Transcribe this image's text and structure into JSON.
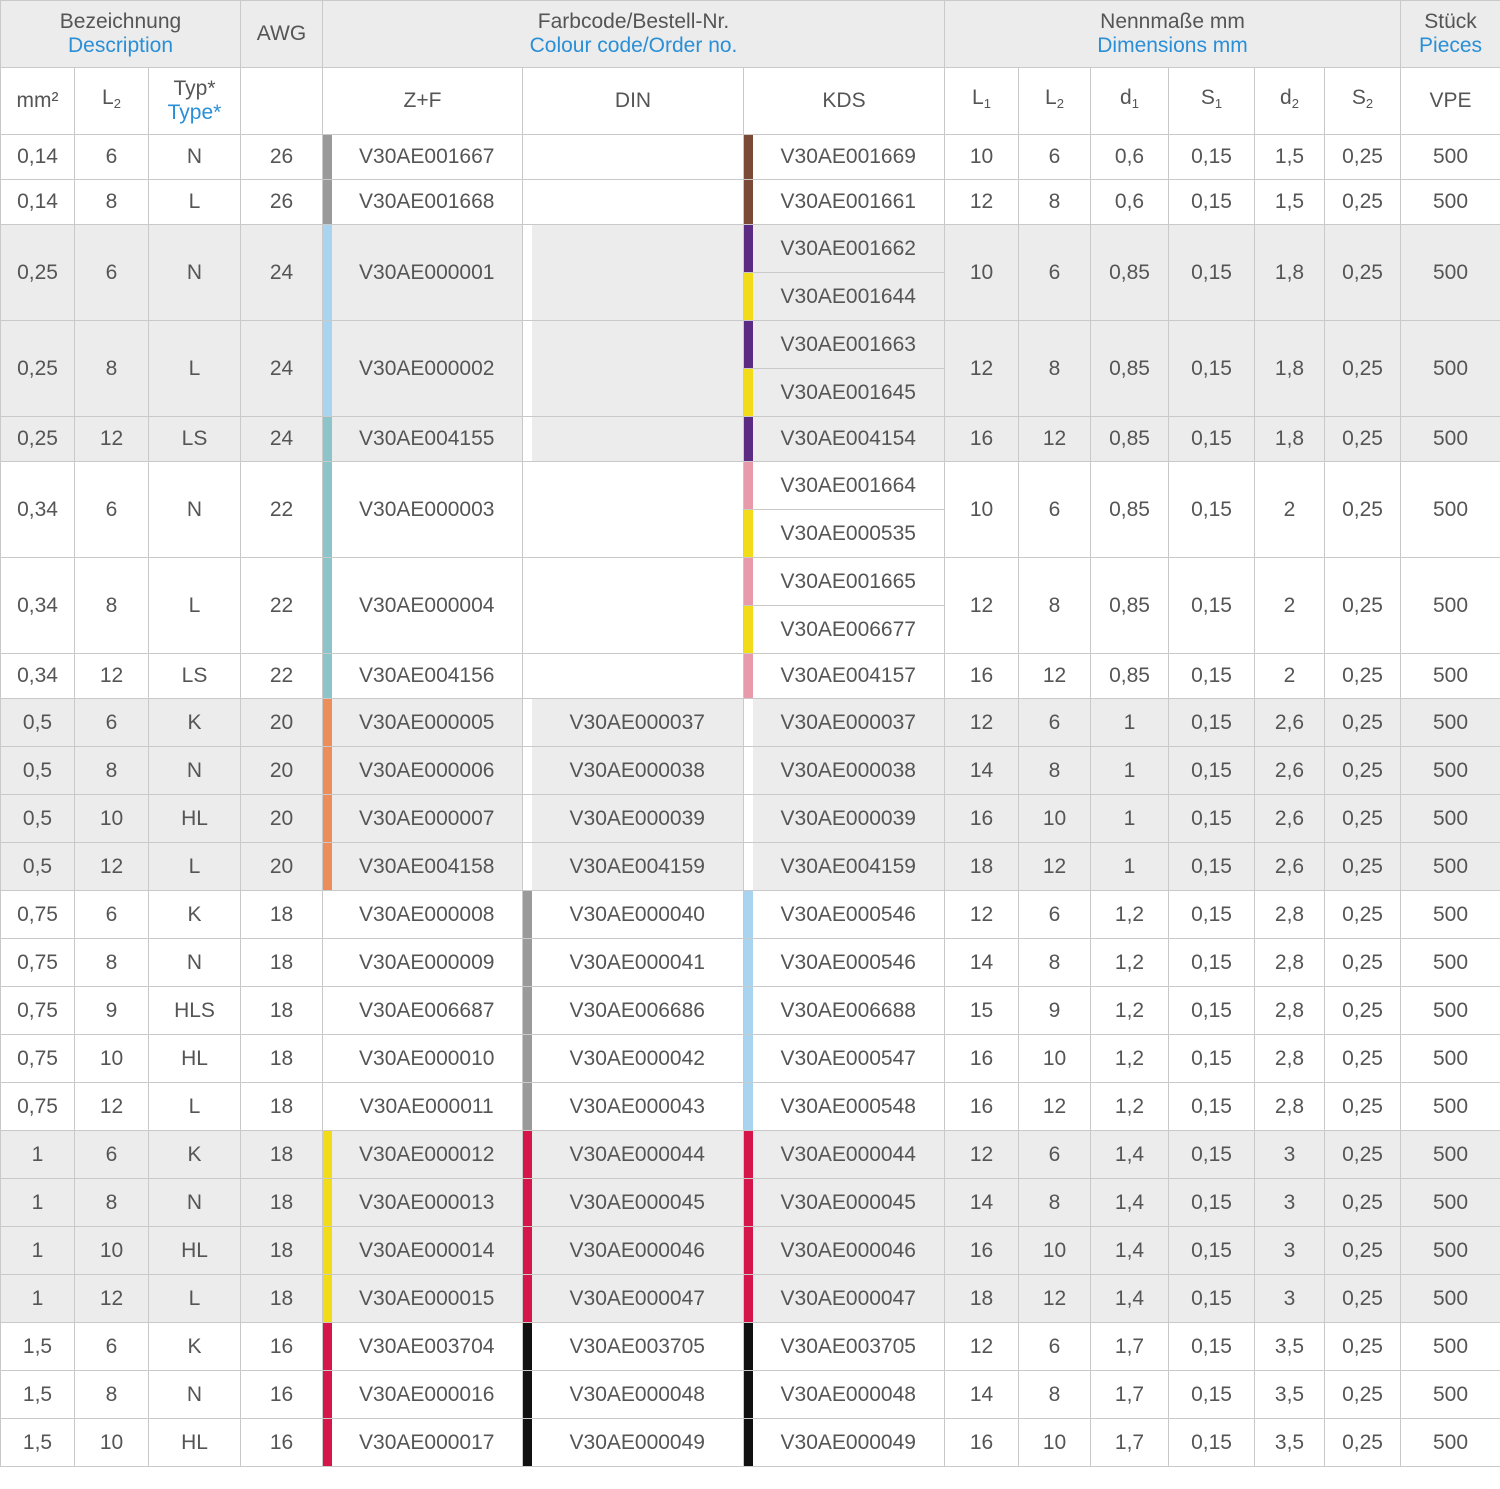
{
  "header": {
    "designation_de": "Bezeichnung",
    "designation_en": "Description",
    "awg": "AWG",
    "colour_de": "Farbcode/Bestell-Nr.",
    "colour_en": "Colour code/Order no.",
    "dim_de": "Nennmaße mm",
    "dim_en": "Dimensions mm",
    "pieces_de": "Stück",
    "pieces_en": "Pieces"
  },
  "subheader": {
    "mm2": "mm²",
    "l2": "L",
    "l2_sub": "2",
    "type_de": "Typ*",
    "type_en": "Type*",
    "zf": "Z+F",
    "din": "DIN",
    "kds": "KDS",
    "L1": "L",
    "L1_sub": "1",
    "L2b": "L",
    "L2b_sub": "2",
    "d1": "d",
    "d1_sub": "1",
    "s1": "S",
    "s1_sub": "1",
    "d2": "d",
    "d2_sub": "2",
    "s2": "S",
    "s2_sub": "2",
    "vpe": "VPE"
  },
  "colors": {
    "grey": "#9a9a9a",
    "brown": "#7b4a36",
    "lightblue": "#a8d4f0",
    "violet": "#5b2a82",
    "yellow": "#f2dc1a",
    "turquoise": "#8cc5c9",
    "pink": "#e89aab",
    "orange": "#ec8d5c",
    "white": "#ffffff",
    "red": "#d4164a",
    "black": "#111111"
  },
  "rows": [
    {
      "mm2": "0,14",
      "l2": "6",
      "typ": "N",
      "awg": "26",
      "zf": "V30AE001667",
      "zf_c": "grey",
      "din": "",
      "din_c": "",
      "kds": [
        "V30AE001669"
      ],
      "kds_c": [
        "brown"
      ],
      "L1": "10",
      "L2": "6",
      "d1": "0,6",
      "s1": "0,15",
      "d2": "1,5",
      "s2": "0,25",
      "vpe": "500",
      "g": false
    },
    {
      "mm2": "0,14",
      "l2": "8",
      "typ": "L",
      "awg": "26",
      "zf": "V30AE001668",
      "zf_c": "grey",
      "din": "",
      "din_c": "",
      "kds": [
        "V30AE001661"
      ],
      "kds_c": [
        "brown"
      ],
      "L1": "12",
      "L2": "8",
      "d1": "0,6",
      "s1": "0,15",
      "d2": "1,5",
      "s2": "0,25",
      "vpe": "500",
      "g": false
    },
    {
      "mm2": "0,25",
      "l2": "6",
      "typ": "N",
      "awg": "24",
      "zf": "V30AE000001",
      "zf_c": "lightblue",
      "din": "",
      "din_c": "",
      "kds": [
        "V30AE001662",
        "V30AE001644"
      ],
      "kds_c": [
        "violet",
        "yellow"
      ],
      "L1": "10",
      "L2": "6",
      "d1": "0,85",
      "s1": "0,15",
      "d2": "1,8",
      "s2": "0,25",
      "vpe": "500",
      "g": true
    },
    {
      "mm2": "0,25",
      "l2": "8",
      "typ": "L",
      "awg": "24",
      "zf": "V30AE000002",
      "zf_c": "lightblue",
      "din": "",
      "din_c": "",
      "kds": [
        "V30AE001663",
        "V30AE001645"
      ],
      "kds_c": [
        "violet",
        "yellow"
      ],
      "L1": "12",
      "L2": "8",
      "d1": "0,85",
      "s1": "0,15",
      "d2": "1,8",
      "s2": "0,25",
      "vpe": "500",
      "g": true
    },
    {
      "mm2": "0,25",
      "l2": "12",
      "typ": "LS",
      "awg": "24",
      "zf": "V30AE004155",
      "zf_c": "turquoise",
      "din": "",
      "din_c": "",
      "kds": [
        "V30AE004154"
      ],
      "kds_c": [
        "violet"
      ],
      "L1": "16",
      "L2": "12",
      "d1": "0,85",
      "s1": "0,15",
      "d2": "1,8",
      "s2": "0,25",
      "vpe": "500",
      "g": true
    },
    {
      "mm2": "0,34",
      "l2": "6",
      "typ": "N",
      "awg": "22",
      "zf": "V30AE000003",
      "zf_c": "turquoise",
      "din": "",
      "din_c": "",
      "kds": [
        "V30AE001664",
        "V30AE000535"
      ],
      "kds_c": [
        "pink",
        "yellow"
      ],
      "L1": "10",
      "L2": "6",
      "d1": "0,85",
      "s1": "0,15",
      "d2": "2",
      "s2": "0,25",
      "vpe": "500",
      "g": false
    },
    {
      "mm2": "0,34",
      "l2": "8",
      "typ": "L",
      "awg": "22",
      "zf": "V30AE000004",
      "zf_c": "turquoise",
      "din": "",
      "din_c": "",
      "kds": [
        "V30AE001665",
        "V30AE006677"
      ],
      "kds_c": [
        "pink",
        "yellow"
      ],
      "L1": "12",
      "L2": "8",
      "d1": "0,85",
      "s1": "0,15",
      "d2": "2",
      "s2": "0,25",
      "vpe": "500",
      "g": false
    },
    {
      "mm2": "0,34",
      "l2": "12",
      "typ": "LS",
      "awg": "22",
      "zf": "V30AE004156",
      "zf_c": "turquoise",
      "din": "",
      "din_c": "",
      "kds": [
        "V30AE004157"
      ],
      "kds_c": [
        "pink"
      ],
      "L1": "16",
      "L2": "12",
      "d1": "0,85",
      "s1": "0,15",
      "d2": "2",
      "s2": "0,25",
      "vpe": "500",
      "g": false
    },
    {
      "mm2": "0,5",
      "l2": "6",
      "typ": "K",
      "awg": "20",
      "zf": "V30AE000005",
      "zf_c": "orange",
      "din": "V30AE000037",
      "din_c": "white",
      "kds": [
        "V30AE000037"
      ],
      "kds_c": [
        "white"
      ],
      "L1": "12",
      "L2": "6",
      "d1": "1",
      "s1": "0,15",
      "d2": "2,6",
      "s2": "0,25",
      "vpe": "500",
      "g": true
    },
    {
      "mm2": "0,5",
      "l2": "8",
      "typ": "N",
      "awg": "20",
      "zf": "V30AE000006",
      "zf_c": "orange",
      "din": "V30AE000038",
      "din_c": "white",
      "kds": [
        "V30AE000038"
      ],
      "kds_c": [
        "white"
      ],
      "L1": "14",
      "L2": "8",
      "d1": "1",
      "s1": "0,15",
      "d2": "2,6",
      "s2": "0,25",
      "vpe": "500",
      "g": true
    },
    {
      "mm2": "0,5",
      "l2": "10",
      "typ": "HL",
      "awg": "20",
      "zf": "V30AE000007",
      "zf_c": "orange",
      "din": "V30AE000039",
      "din_c": "white",
      "kds": [
        "V30AE000039"
      ],
      "kds_c": [
        "white"
      ],
      "L1": "16",
      "L2": "10",
      "d1": "1",
      "s1": "0,15",
      "d2": "2,6",
      "s2": "0,25",
      "vpe": "500",
      "g": true
    },
    {
      "mm2": "0,5",
      "l2": "12",
      "typ": "L",
      "awg": "20",
      "zf": "V30AE004158",
      "zf_c": "orange",
      "din": "V30AE004159",
      "din_c": "white",
      "kds": [
        "V30AE004159"
      ],
      "kds_c": [
        "white"
      ],
      "L1": "18",
      "L2": "12",
      "d1": "1",
      "s1": "0,15",
      "d2": "2,6",
      "s2": "0,25",
      "vpe": "500",
      "g": true
    },
    {
      "mm2": "0,75",
      "l2": "6",
      "typ": "K",
      "awg": "18",
      "zf": "V30AE000008",
      "zf_c": "white",
      "din": "V30AE000040",
      "din_c": "grey",
      "kds": [
        "V30AE000546"
      ],
      "kds_c": [
        "lightblue"
      ],
      "L1": "12",
      "L2": "6",
      "d1": "1,2",
      "s1": "0,15",
      "d2": "2,8",
      "s2": "0,25",
      "vpe": "500",
      "g": false
    },
    {
      "mm2": "0,75",
      "l2": "8",
      "typ": "N",
      "awg": "18",
      "zf": "V30AE000009",
      "zf_c": "white",
      "din": "V30AE000041",
      "din_c": "grey",
      "kds": [
        "V30AE000546"
      ],
      "kds_c": [
        "lightblue"
      ],
      "L1": "14",
      "L2": "8",
      "d1": "1,2",
      "s1": "0,15",
      "d2": "2,8",
      "s2": "0,25",
      "vpe": "500",
      "g": false
    },
    {
      "mm2": "0,75",
      "l2": "9",
      "typ": "HLS",
      "awg": "18",
      "zf": "V30AE006687",
      "zf_c": "white",
      "din": "V30AE006686",
      "din_c": "grey",
      "kds": [
        "V30AE006688"
      ],
      "kds_c": [
        "lightblue"
      ],
      "L1": "15",
      "L2": "9",
      "d1": "1,2",
      "s1": "0,15",
      "d2": "2,8",
      "s2": "0,25",
      "vpe": "500",
      "g": false
    },
    {
      "mm2": "0,75",
      "l2": "10",
      "typ": "HL",
      "awg": "18",
      "zf": "V30AE000010",
      "zf_c": "white",
      "din": "V30AE000042",
      "din_c": "grey",
      "kds": [
        "V30AE000547"
      ],
      "kds_c": [
        "lightblue"
      ],
      "L1": "16",
      "L2": "10",
      "d1": "1,2",
      "s1": "0,15",
      "d2": "2,8",
      "s2": "0,25",
      "vpe": "500",
      "g": false
    },
    {
      "mm2": "0,75",
      "l2": "12",
      "typ": "L",
      "awg": "18",
      "zf": "V30AE000011",
      "zf_c": "white",
      "din": "V30AE000043",
      "din_c": "grey",
      "kds": [
        "V30AE000548"
      ],
      "kds_c": [
        "lightblue"
      ],
      "L1": "16",
      "L2": "12",
      "d1": "1,2",
      "s1": "0,15",
      "d2": "2,8",
      "s2": "0,25",
      "vpe": "500",
      "g": false
    },
    {
      "mm2": "1",
      "l2": "6",
      "typ": "K",
      "awg": "18",
      "zf": "V30AE000012",
      "zf_c": "yellow",
      "din": "V30AE000044",
      "din_c": "red",
      "kds": [
        "V30AE000044"
      ],
      "kds_c": [
        "red"
      ],
      "L1": "12",
      "L2": "6",
      "d1": "1,4",
      "s1": "0,15",
      "d2": "3",
      "s2": "0,25",
      "vpe": "500",
      "g": true
    },
    {
      "mm2": "1",
      "l2": "8",
      "typ": "N",
      "awg": "18",
      "zf": "V30AE000013",
      "zf_c": "yellow",
      "din": "V30AE000045",
      "din_c": "red",
      "kds": [
        "V30AE000045"
      ],
      "kds_c": [
        "red"
      ],
      "L1": "14",
      "L2": "8",
      "d1": "1,4",
      "s1": "0,15",
      "d2": "3",
      "s2": "0,25",
      "vpe": "500",
      "g": true
    },
    {
      "mm2": "1",
      "l2": "10",
      "typ": "HL",
      "awg": "18",
      "zf": "V30AE000014",
      "zf_c": "yellow",
      "din": "V30AE000046",
      "din_c": "red",
      "kds": [
        "V30AE000046"
      ],
      "kds_c": [
        "red"
      ],
      "L1": "16",
      "L2": "10",
      "d1": "1,4",
      "s1": "0,15",
      "d2": "3",
      "s2": "0,25",
      "vpe": "500",
      "g": true
    },
    {
      "mm2": "1",
      "l2": "12",
      "typ": "L",
      "awg": "18",
      "zf": "V30AE000015",
      "zf_c": "yellow",
      "din": "V30AE000047",
      "din_c": "red",
      "kds": [
        "V30AE000047"
      ],
      "kds_c": [
        "red"
      ],
      "L1": "18",
      "L2": "12",
      "d1": "1,4",
      "s1": "0,15",
      "d2": "3",
      "s2": "0,25",
      "vpe": "500",
      "g": true
    },
    {
      "mm2": "1,5",
      "l2": "6",
      "typ": "K",
      "awg": "16",
      "zf": "V30AE003704",
      "zf_c": "red",
      "din": "V30AE003705",
      "din_c": "black",
      "kds": [
        "V30AE003705"
      ],
      "kds_c": [
        "black"
      ],
      "L1": "12",
      "L2": "6",
      "d1": "1,7",
      "s1": "0,15",
      "d2": "3,5",
      "s2": "0,25",
      "vpe": "500",
      "g": false
    },
    {
      "mm2": "1,5",
      "l2": "8",
      "typ": "N",
      "awg": "16",
      "zf": "V30AE000016",
      "zf_c": "red",
      "din": "V30AE000048",
      "din_c": "black",
      "kds": [
        "V30AE000048"
      ],
      "kds_c": [
        "black"
      ],
      "L1": "14",
      "L2": "8",
      "d1": "1,7",
      "s1": "0,15",
      "d2": "3,5",
      "s2": "0,25",
      "vpe": "500",
      "g": false
    },
    {
      "mm2": "1,5",
      "l2": "10",
      "typ": "HL",
      "awg": "16",
      "zf": "V30AE000017",
      "zf_c": "red",
      "din": "V30AE000049",
      "din_c": "black",
      "kds": [
        "V30AE000049"
      ],
      "kds_c": [
        "black"
      ],
      "L1": "16",
      "L2": "10",
      "d1": "1,7",
      "s1": "0,15",
      "d2": "3,5",
      "s2": "0,25",
      "vpe": "500",
      "g": false
    }
  ]
}
